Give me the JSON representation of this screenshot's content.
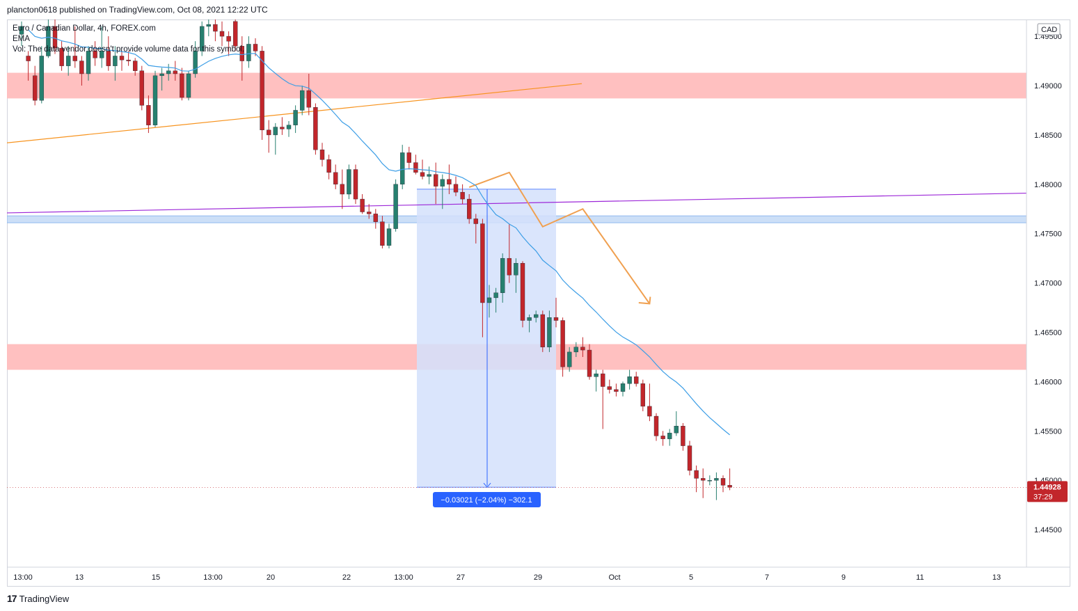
{
  "header": {
    "publisher": "plancton0618 published on TradingView.com, Oct 08, 2021 12:22 UTC"
  },
  "legend": {
    "symbol_line": "Euro / Canadian Dollar, 4h, FOREX.com",
    "ema_line": "EMA",
    "vol_line": "Vol: The data vendor doesn't provide volume data for this symbol."
  },
  "price_axis": {
    "currency": "CAD",
    "ticks": [
      "1.49500",
      "1.49000",
      "1.48500",
      "1.48000",
      "1.47500",
      "1.47000",
      "1.46500",
      "1.46000",
      "1.45500",
      "1.45000",
      "1.44500"
    ],
    "last_price": "1.44928",
    "countdown": "37:29"
  },
  "time_axis": {
    "ticks": [
      "13:00",
      "13",
      "15",
      "13:00",
      "20",
      "22",
      "13:00",
      "27",
      "29",
      "Oct",
      "5",
      "7",
      "9",
      "11",
      "13"
    ]
  },
  "measure_label": "−0.03021 (−2.04%) −302.1",
  "footer": {
    "logo_text": "17",
    "brand": "TradingView"
  },
  "colors": {
    "up": "#26806f",
    "down": "#c2262b",
    "ema": "#3d9ee6",
    "orange_line": "#f7931e",
    "purple_line": "#9c27d8",
    "resistance_zone": "#ffbdbd",
    "support_zone": "#c6dcf6",
    "measure_fill": "#d3e1fb",
    "measure_line": "#2962ff",
    "last_price_bg": "#c2262b"
  },
  "chart_data": {
    "type": "candlestick",
    "symbol": "Euro / Canadian Dollar",
    "timeframe": "4h",
    "y_range": [
      1.4412,
      1.4967
    ],
    "zones": [
      {
        "kind": "resistance",
        "low": 1.4887,
        "high": 1.4913
      },
      {
        "kind": "support",
        "low": 1.4761,
        "high": 1.4768
      },
      {
        "kind": "resistance",
        "low": 1.4612,
        "high": 1.4638
      }
    ],
    "candles": [
      {
        "o": 1.4952,
        "h": 1.4965,
        "l": 1.494,
        "c": 1.496
      },
      {
        "o": 1.493,
        "h": 1.4935,
        "l": 1.4905,
        "c": 1.4925
      },
      {
        "o": 1.491,
        "h": 1.492,
        "l": 1.488,
        "c": 1.4885
      },
      {
        "o": 1.4885,
        "h": 1.494,
        "l": 1.4882,
        "c": 1.493
      },
      {
        "o": 1.493,
        "h": 1.497,
        "l": 1.4928,
        "c": 1.496
      },
      {
        "o": 1.496,
        "h": 1.4968,
        "l": 1.4932,
        "c": 1.4938
      },
      {
        "o": 1.4938,
        "h": 1.4945,
        "l": 1.4915,
        "c": 1.492
      },
      {
        "o": 1.492,
        "h": 1.494,
        "l": 1.491,
        "c": 1.493
      },
      {
        "o": 1.493,
        "h": 1.496,
        "l": 1.4918,
        "c": 1.4925
      },
      {
        "o": 1.4925,
        "h": 1.493,
        "l": 1.49,
        "c": 1.4912
      },
      {
        "o": 1.4912,
        "h": 1.494,
        "l": 1.4905,
        "c": 1.4935
      },
      {
        "o": 1.4935,
        "h": 1.4945,
        "l": 1.492,
        "c": 1.4928
      },
      {
        "o": 1.4928,
        "h": 1.496,
        "l": 1.4918,
        "c": 1.4935
      },
      {
        "o": 1.4935,
        "h": 1.495,
        "l": 1.4915,
        "c": 1.492
      },
      {
        "o": 1.492,
        "h": 1.494,
        "l": 1.4905,
        "c": 1.493
      },
      {
        "o": 1.493,
        "h": 1.4935,
        "l": 1.4915,
        "c": 1.4926
      },
      {
        "o": 1.4926,
        "h": 1.4935,
        "l": 1.492,
        "c": 1.4925
      },
      {
        "o": 1.4925,
        "h": 1.4928,
        "l": 1.491,
        "c": 1.4915
      },
      {
        "o": 1.4915,
        "h": 1.492,
        "l": 1.4875,
        "c": 1.488
      },
      {
        "o": 1.488,
        "h": 1.489,
        "l": 1.4852,
        "c": 1.486
      },
      {
        "o": 1.486,
        "h": 1.4915,
        "l": 1.4858,
        "c": 1.491
      },
      {
        "o": 1.491,
        "h": 1.4918,
        "l": 1.4895,
        "c": 1.4912
      },
      {
        "o": 1.4912,
        "h": 1.4922,
        "l": 1.4905,
        "c": 1.4915
      },
      {
        "o": 1.4915,
        "h": 1.4925,
        "l": 1.4905,
        "c": 1.4912
      },
      {
        "o": 1.4912,
        "h": 1.4918,
        "l": 1.4885,
        "c": 1.4888
      },
      {
        "o": 1.4888,
        "h": 1.4915,
        "l": 1.4885,
        "c": 1.4912
      },
      {
        "o": 1.4912,
        "h": 1.4945,
        "l": 1.4908,
        "c": 1.4935
      },
      {
        "o": 1.4935,
        "h": 1.4965,
        "l": 1.493,
        "c": 1.496
      },
      {
        "o": 1.496,
        "h": 1.4968,
        "l": 1.495,
        "c": 1.4962
      },
      {
        "o": 1.4962,
        "h": 1.497,
        "l": 1.4945,
        "c": 1.4955
      },
      {
        "o": 1.4955,
        "h": 1.4965,
        "l": 1.494,
        "c": 1.495
      },
      {
        "o": 1.495,
        "h": 1.4955,
        "l": 1.493,
        "c": 1.4945
      },
      {
        "o": 1.4965,
        "h": 1.497,
        "l": 1.4935,
        "c": 1.494
      },
      {
        "o": 1.494,
        "h": 1.495,
        "l": 1.4905,
        "c": 1.4925
      },
      {
        "o": 1.4925,
        "h": 1.495,
        "l": 1.4918,
        "c": 1.4942
      },
      {
        "o": 1.4942,
        "h": 1.4948,
        "l": 1.493,
        "c": 1.4935
      },
      {
        "o": 1.4935,
        "h": 1.494,
        "l": 1.4845,
        "c": 1.4855
      },
      {
        "o": 1.4855,
        "h": 1.4865,
        "l": 1.4832,
        "c": 1.485
      },
      {
        "o": 1.485,
        "h": 1.4862,
        "l": 1.483,
        "c": 1.4858
      },
      {
        "o": 1.4858,
        "h": 1.4868,
        "l": 1.485,
        "c": 1.4856
      },
      {
        "o": 1.4856,
        "h": 1.4864,
        "l": 1.4848,
        "c": 1.486
      },
      {
        "o": 1.486,
        "h": 1.488,
        "l": 1.4852,
        "c": 1.4875
      },
      {
        "o": 1.4875,
        "h": 1.49,
        "l": 1.487,
        "c": 1.4895
      },
      {
        "o": 1.4895,
        "h": 1.4912,
        "l": 1.487,
        "c": 1.4878
      },
      {
        "o": 1.4878,
        "h": 1.4882,
        "l": 1.483,
        "c": 1.4835
      },
      {
        "o": 1.4835,
        "h": 1.4842,
        "l": 1.4818,
        "c": 1.4825
      },
      {
        "o": 1.4825,
        "h": 1.483,
        "l": 1.4805,
        "c": 1.4812
      },
      {
        "o": 1.4812,
        "h": 1.482,
        "l": 1.4795,
        "c": 1.48
      },
      {
        "o": 1.48,
        "h": 1.4815,
        "l": 1.4775,
        "c": 1.479
      },
      {
        "o": 1.479,
        "h": 1.482,
        "l": 1.4785,
        "c": 1.4815
      },
      {
        "o": 1.4815,
        "h": 1.482,
        "l": 1.478,
        "c": 1.4785
      },
      {
        "o": 1.4785,
        "h": 1.479,
        "l": 1.477,
        "c": 1.4772
      },
      {
        "o": 1.4772,
        "h": 1.478,
        "l": 1.4765,
        "c": 1.477
      },
      {
        "o": 1.477,
        "h": 1.4775,
        "l": 1.4755,
        "c": 1.4762
      },
      {
        "o": 1.4762,
        "h": 1.4768,
        "l": 1.4735,
        "c": 1.4738
      },
      {
        "o": 1.4738,
        "h": 1.476,
        "l": 1.4735,
        "c": 1.4755
      },
      {
        "o": 1.4755,
        "h": 1.4805,
        "l": 1.4752,
        "c": 1.48
      },
      {
        "o": 1.48,
        "h": 1.484,
        "l": 1.4795,
        "c": 1.4832
      },
      {
        "o": 1.4832,
        "h": 1.4838,
        "l": 1.4815,
        "c": 1.4822
      },
      {
        "o": 1.4822,
        "h": 1.483,
        "l": 1.481,
        "c": 1.4812
      },
      {
        "o": 1.4812,
        "h": 1.4825,
        "l": 1.4805,
        "c": 1.4808
      },
      {
        "o": 1.4808,
        "h": 1.4818,
        "l": 1.48,
        "c": 1.481
      },
      {
        "o": 1.481,
        "h": 1.4822,
        "l": 1.478,
        "c": 1.4798
      },
      {
        "o": 1.4798,
        "h": 1.481,
        "l": 1.4775,
        "c": 1.4805
      },
      {
        "o": 1.4805,
        "h": 1.482,
        "l": 1.479,
        "c": 1.48
      },
      {
        "o": 1.48,
        "h": 1.4808,
        "l": 1.4788,
        "c": 1.4792
      },
      {
        "o": 1.4792,
        "h": 1.48,
        "l": 1.478,
        "c": 1.4785
      },
      {
        "o": 1.4785,
        "h": 1.479,
        "l": 1.476,
        "c": 1.4765
      },
      {
        "o": 1.4765,
        "h": 1.477,
        "l": 1.474,
        "c": 1.476
      },
      {
        "o": 1.476,
        "h": 1.4765,
        "l": 1.4645,
        "c": 1.468
      },
      {
        "o": 1.468,
        "h": 1.4698,
        "l": 1.4665,
        "c": 1.4685
      },
      {
        "o": 1.4685,
        "h": 1.4695,
        "l": 1.467,
        "c": 1.469
      },
      {
        "o": 1.469,
        "h": 1.473,
        "l": 1.468,
        "c": 1.4725
      },
      {
        "o": 1.4725,
        "h": 1.476,
        "l": 1.47,
        "c": 1.4708
      },
      {
        "o": 1.4708,
        "h": 1.4725,
        "l": 1.469,
        "c": 1.472
      },
      {
        "o": 1.472,
        "h": 1.4722,
        "l": 1.4655,
        "c": 1.4662
      },
      {
        "o": 1.4662,
        "h": 1.4668,
        "l": 1.465,
        "c": 1.4665
      },
      {
        "o": 1.4665,
        "h": 1.4672,
        "l": 1.466,
        "c": 1.4668
      },
      {
        "o": 1.4668,
        "h": 1.4672,
        "l": 1.463,
        "c": 1.4635
      },
      {
        "o": 1.4635,
        "h": 1.4672,
        "l": 1.463,
        "c": 1.4665
      },
      {
        "o": 1.4665,
        "h": 1.4685,
        "l": 1.4655,
        "c": 1.4662
      },
      {
        "o": 1.4662,
        "h": 1.4665,
        "l": 1.4605,
        "c": 1.4615
      },
      {
        "o": 1.4615,
        "h": 1.4635,
        "l": 1.461,
        "c": 1.463
      },
      {
        "o": 1.463,
        "h": 1.464,
        "l": 1.4625,
        "c": 1.4635
      },
      {
        "o": 1.4635,
        "h": 1.4645,
        "l": 1.4625,
        "c": 1.4632
      },
      {
        "o": 1.4632,
        "h": 1.4638,
        "l": 1.4602,
        "c": 1.4605
      },
      {
        "o": 1.4605,
        "h": 1.4612,
        "l": 1.459,
        "c": 1.4608
      },
      {
        "o": 1.4608,
        "h": 1.4612,
        "l": 1.4552,
        "c": 1.4595
      },
      {
        "o": 1.4595,
        "h": 1.4602,
        "l": 1.4588,
        "c": 1.4592
      },
      {
        "o": 1.4592,
        "h": 1.4598,
        "l": 1.4585,
        "c": 1.459
      },
      {
        "o": 1.459,
        "h": 1.46,
        "l": 1.4585,
        "c": 1.4598
      },
      {
        "o": 1.4598,
        "h": 1.4612,
        "l": 1.4592,
        "c": 1.4605
      },
      {
        "o": 1.4605,
        "h": 1.461,
        "l": 1.4595,
        "c": 1.4598
      },
      {
        "o": 1.4598,
        "h": 1.4602,
        "l": 1.457,
        "c": 1.4575
      },
      {
        "o": 1.4575,
        "h": 1.4598,
        "l": 1.456,
        "c": 1.4565
      },
      {
        "o": 1.4565,
        "h": 1.4568,
        "l": 1.454,
        "c": 1.4545
      },
      {
        "o": 1.4545,
        "h": 1.455,
        "l": 1.4535,
        "c": 1.4542
      },
      {
        "o": 1.4542,
        "h": 1.4552,
        "l": 1.4535,
        "c": 1.4548
      },
      {
        "o": 1.4548,
        "h": 1.457,
        "l": 1.4545,
        "c": 1.4555
      },
      {
        "o": 1.4555,
        "h": 1.4558,
        "l": 1.453,
        "c": 1.4535
      },
      {
        "o": 1.4535,
        "h": 1.454,
        "l": 1.4505,
        "c": 1.451
      },
      {
        "o": 1.451,
        "h": 1.4515,
        "l": 1.4488,
        "c": 1.4502
      },
      {
        "o": 1.4502,
        "h": 1.4512,
        "l": 1.4482,
        "c": 1.45
      },
      {
        "o": 1.45,
        "h": 1.4505,
        "l": 1.4495,
        "c": 1.45
      },
      {
        "o": 1.45,
        "h": 1.4508,
        "l": 1.448,
        "c": 1.4502
      },
      {
        "o": 1.4502,
        "h": 1.4505,
        "l": 1.4488,
        "c": 1.4495
      },
      {
        "o": 1.4495,
        "h": 1.4512,
        "l": 1.449,
        "c": 1.4493
      }
    ]
  }
}
